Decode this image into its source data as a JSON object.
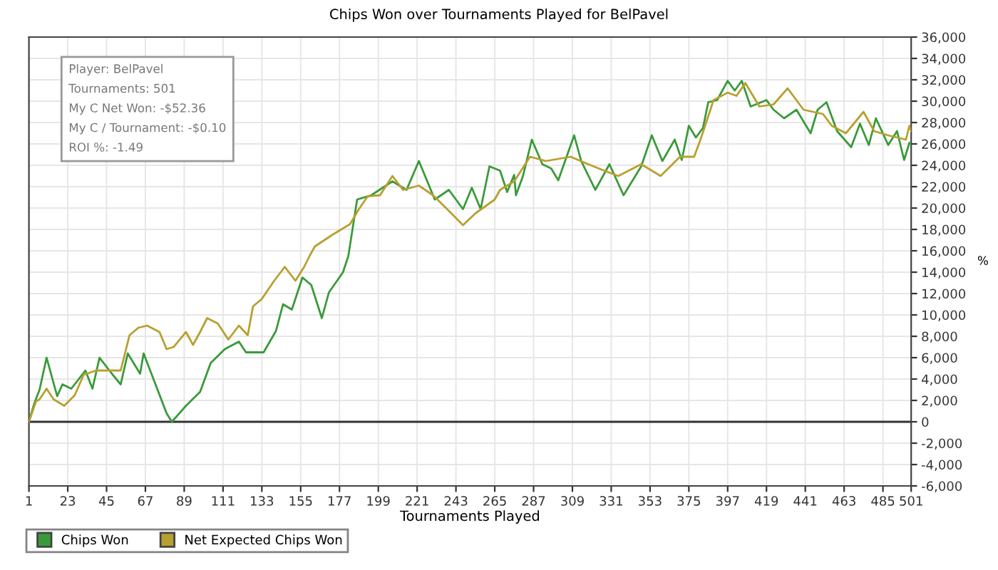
{
  "chart_data": {
    "type": "line",
    "title": "Chips Won over Tournaments Played for BelPavel",
    "xlabel": "Tournaments Played",
    "ylabel": "%",
    "annotations": [
      "Player: BelPavel",
      "Tournaments: 501",
      "My C Net Won: -$52.36",
      "My C / Tournament: -$0.10",
      "ROI %: -1.49"
    ],
    "xlim": [
      1,
      501
    ],
    "xticks": [
      1,
      23,
      45,
      67,
      89,
      111,
      133,
      155,
      177,
      199,
      221,
      243,
      265,
      287,
      309,
      331,
      353,
      375,
      397,
      419,
      441,
      463,
      485,
      501
    ],
    "ylim": [
      -6000,
      36000
    ],
    "yticks": [
      {
        "value": -6000,
        "label": "-6,000"
      },
      {
        "value": -4000,
        "label": "-4,000"
      },
      {
        "value": -2000,
        "label": "-2,000"
      },
      0,
      {
        "value": 2000,
        "label": "2,000"
      },
      {
        "value": 4000,
        "label": "4,000"
      },
      {
        "value": 6000,
        "label": "6,000"
      },
      {
        "value": 8000,
        "label": "8,000"
      },
      {
        "value": 10000,
        "label": "10,000"
      },
      {
        "value": 12000,
        "label": "12,000"
      },
      {
        "value": 14000,
        "label": "14,000"
      },
      {
        "value": 16000,
        "label": "16,000"
      },
      {
        "value": 18000,
        "label": "18,000"
      },
      {
        "value": 20000,
        "label": "20,000"
      },
      {
        "value": 22000,
        "label": "22,000"
      },
      {
        "value": 24000,
        "label": "24,000"
      },
      {
        "value": 26000,
        "label": "26,000"
      },
      {
        "value": 28000,
        "label": "28,000"
      },
      {
        "value": 30000,
        "label": "30,000"
      },
      {
        "value": 32000,
        "label": "32,000"
      },
      {
        "value": 34000,
        "label": "34,000"
      },
      {
        "value": 36000,
        "label": "36,000"
      }
    ],
    "grid": true,
    "legend": "bottom left",
    "marker": "none",
    "line_style": "solid",
    "ref_lines": [
      {
        "axis": "y",
        "value": 0,
        "label": null,
        "color": "#333333"
      }
    ],
    "series": [
      {
        "name": "Chips Won",
        "color": "#3a9a3a",
        "x": [
          1,
          4,
          7,
          11,
          17,
          20,
          25,
          33,
          37,
          41,
          48,
          53,
          57,
          64,
          66,
          79,
          82,
          90,
          98,
          104,
          112,
          120,
          124,
          134,
          141,
          145,
          150,
          156,
          161,
          167,
          171,
          179,
          182,
          187,
          195,
          207,
          215,
          222,
          231,
          239,
          247,
          252,
          257,
          262,
          268,
          272,
          276,
          277,
          281,
          286,
          292,
          297,
          301,
          310,
          314,
          322,
          330,
          338,
          348,
          354,
          360,
          367,
          371,
          375,
          379,
          383,
          386,
          391,
          397,
          401,
          405,
          410,
          419,
          423,
          429,
          436,
          444,
          448,
          453,
          459,
          467,
          472,
          477,
          481,
          488,
          493,
          497,
          500,
          501
        ],
        "values": [
          0,
          1700,
          3000,
          6000,
          2400,
          3500,
          3100,
          4800,
          3100,
          6000,
          4500,
          3500,
          6400,
          4500,
          6400,
          800,
          0,
          1500,
          2800,
          5500,
          6800,
          7500,
          6500,
          6500,
          8500,
          11000,
          10500,
          13500,
          12800,
          9700,
          12100,
          14000,
          15500,
          20800,
          21200,
          22500,
          21700,
          24400,
          20800,
          21700,
          19900,
          21900,
          19900,
          23900,
          23500,
          21500,
          23100,
          21200,
          23000,
          26400,
          24100,
          23700,
          22600,
          26800,
          24400,
          21700,
          24100,
          21200,
          23900,
          26800,
          24400,
          26400,
          24500,
          27700,
          26600,
          27500,
          29900,
          30100,
          31900,
          31000,
          31900,
          29500,
          30100,
          29200,
          28400,
          29200,
          27000,
          29200,
          29900,
          27200,
          25700,
          27900,
          25900,
          28400,
          25900,
          27200,
          24500,
          26100,
          26000
        ]
      },
      {
        "name": "Net Expected Chips Won",
        "color": "#b8a030",
        "x": [
          1,
          5,
          7,
          11,
          15,
          21,
          27,
          32,
          39,
          47,
          53,
          58,
          63,
          68,
          75,
          79,
          83,
          90,
          94,
          98,
          102,
          108,
          114,
          120,
          125,
          128,
          133,
          140,
          146,
          152,
          157,
          160,
          163,
          173,
          183,
          188,
          193,
          200,
          207,
          213,
          222,
          230,
          238,
          247,
          254,
          265,
          268,
          276,
          285,
          294,
          308,
          318,
          327,
          335,
          348,
          359,
          370,
          378,
          382,
          389,
          397,
          402,
          407,
          415,
          423,
          431,
          440,
          451,
          456,
          464,
          474,
          480,
          488,
          498,
          500,
          501
        ],
        "values": [
          0,
          1900,
          2100,
          3100,
          2100,
          1500,
          2500,
          4400,
          4800,
          4800,
          4800,
          8100,
          8800,
          9000,
          8400,
          6800,
          7000,
          8400,
          7200,
          8400,
          9700,
          9200,
          7700,
          9000,
          8100,
          10800,
          11500,
          13200,
          14500,
          13200,
          14500,
          15500,
          16400,
          17500,
          18500,
          19900,
          21100,
          21200,
          23000,
          21700,
          22100,
          21200,
          19900,
          18400,
          19500,
          20800,
          21700,
          22500,
          24800,
          24400,
          24800,
          24100,
          23500,
          23000,
          24100,
          23000,
          24800,
          24800,
          26600,
          30100,
          30800,
          30500,
          31700,
          29500,
          29700,
          31200,
          29200,
          28800,
          27700,
          27000,
          29000,
          27200,
          26800,
          26400,
          27700,
          27200
        ]
      }
    ]
  }
}
